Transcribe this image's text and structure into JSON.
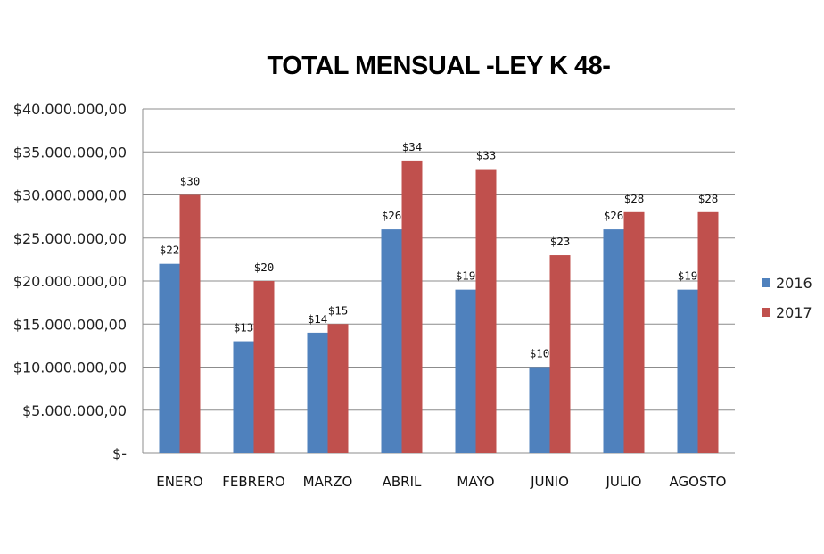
{
  "chart_data": {
    "type": "bar",
    "title": "TOTAL MENSUAL -LEY K 48-",
    "categories": [
      "ENERO",
      "FEBRERO",
      "MARZO",
      "ABRIL",
      "MAYO",
      "JUNIO",
      "JULIO",
      "AGOSTO"
    ],
    "series": [
      {
        "name": "2016",
        "color": "#4F81BD",
        "values": [
          22000000,
          13000000,
          14000000,
          26000000,
          19000000,
          10000000,
          26000000,
          19000000
        ],
        "labels": [
          "$22",
          "$13",
          "$14",
          "$26",
          "$19",
          "$10",
          "$26",
          "$19"
        ]
      },
      {
        "name": "2017",
        "color": "#C0504D",
        "values": [
          30000000,
          20000000,
          15000000,
          34000000,
          33000000,
          23000000,
          28000000,
          28000000
        ],
        "labels": [
          "$30",
          "$20",
          "$15",
          "$34",
          "$33",
          "$23",
          "$28",
          "$28"
        ]
      }
    ],
    "ylim": [
      0,
      40000000
    ],
    "yticks": [
      0,
      5000000,
      10000000,
      15000000,
      20000000,
      25000000,
      30000000,
      35000000,
      40000000
    ],
    "ytick_labels": [
      "$-",
      "$5.000.000,00",
      "$10.000.000,00",
      "$15.000.000,00",
      "$20.000.000,00",
      "$25.000.000,00",
      "$30.000.000,00",
      "$35.000.000,00",
      "$40.000.000,00"
    ],
    "grid": true,
    "legend": "right"
  }
}
